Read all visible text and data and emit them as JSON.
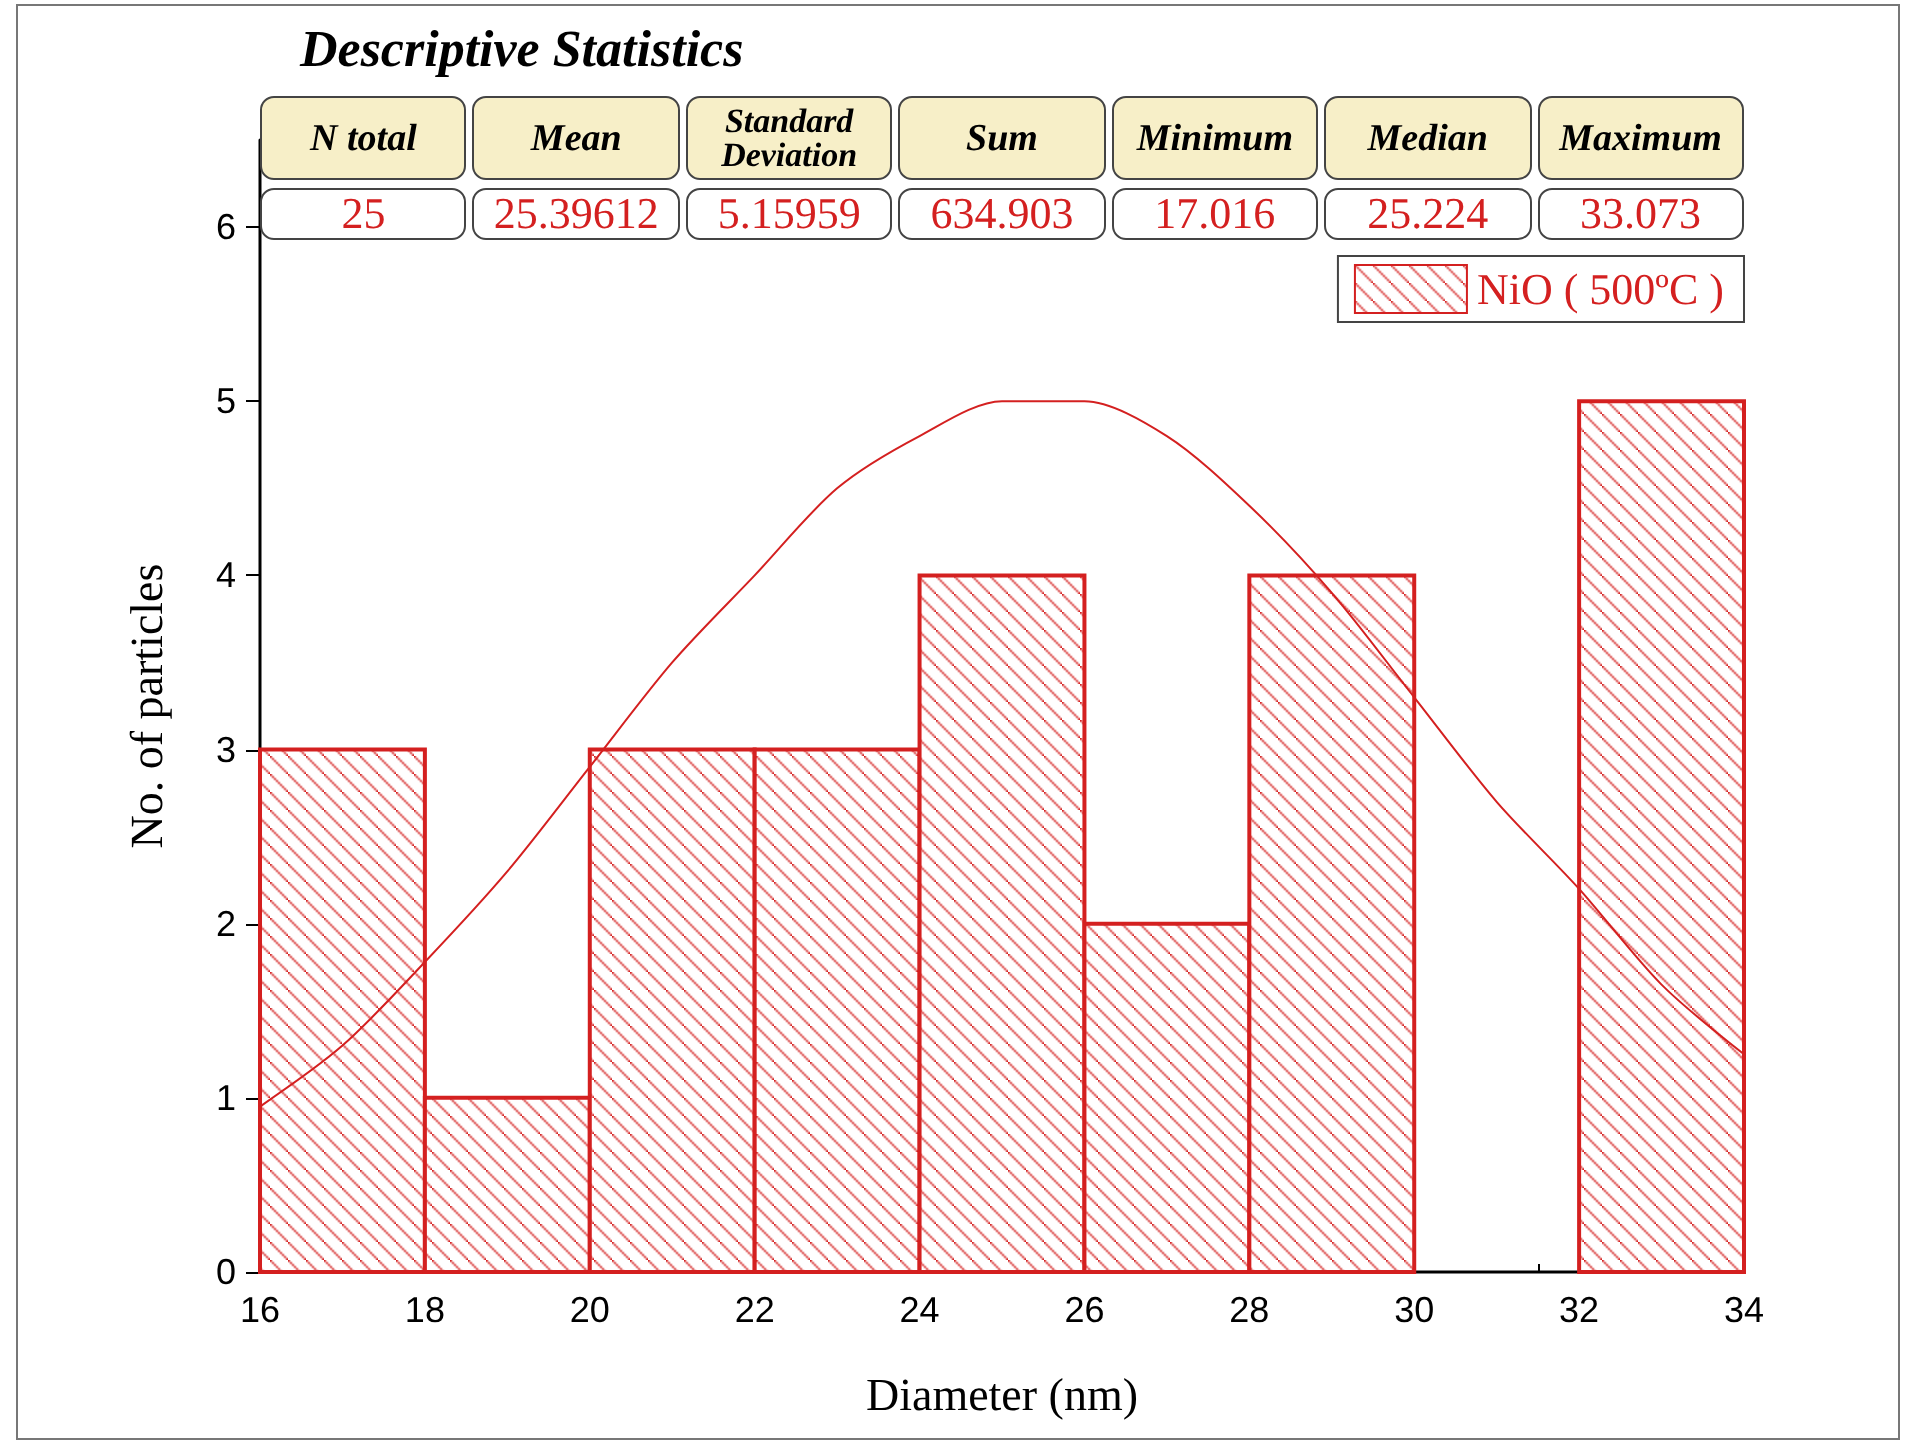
{
  "chart_data": {
    "type": "histogram",
    "title": "Descriptive Statistics",
    "xlabel": "Diameter (nm)",
    "ylabel": "No. of particles",
    "bins": [
      16,
      18,
      20,
      22,
      24,
      26,
      28,
      30,
      32,
      34
    ],
    "series": [
      {
        "name": "NiO ( 500ºC )",
        "color": "#d42020",
        "values": [
          3,
          1,
          3,
          3,
          4,
          2,
          4,
          0,
          5
        ]
      },
      {
        "type": "line",
        "color": "#d42020",
        "x": [
          16,
          17,
          18,
          19,
          20,
          21,
          22,
          23,
          24,
          25,
          26,
          27,
          28,
          29,
          30,
          31,
          32,
          33,
          34
        ],
        "values": [
          0.95,
          1.3,
          1.78,
          2.3,
          2.9,
          3.5,
          4.0,
          4.5,
          4.8,
          5.0,
          5.0,
          4.8,
          4.4,
          3.9,
          3.3,
          2.7,
          2.2,
          1.65,
          1.25
        ]
      }
    ],
    "annotations": [
      "N total",
      "Mean",
      "Standard Deviation",
      "Sum",
      "Minimum",
      "Median",
      "Maximum",
      "25",
      "25.39612",
      "5.15959",
      "634.903",
      "17.016",
      "25.224",
      "33.073"
    ],
    "xlim": [
      16,
      34
    ],
    "xticks": [
      16,
      18,
      20,
      22,
      24,
      26,
      28,
      30,
      32,
      34
    ],
    "ylim": [
      0,
      6.5
    ],
    "yticks": [
      0,
      1,
      2,
      3,
      4,
      5,
      6
    ],
    "grid": false,
    "legend": "top right"
  }
}
